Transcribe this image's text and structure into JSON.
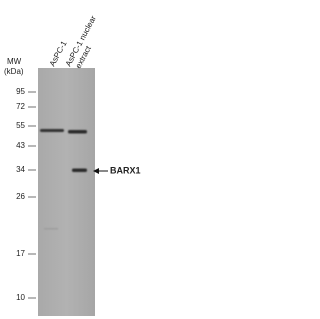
{
  "lanes": [
    "AsPC-1",
    "AsPC-1 nuclear",
    "extract"
  ],
  "mw_label": "MW",
  "mw_unit": "(kDa)",
  "markers": [
    95,
    72,
    55,
    43,
    34,
    26,
    17,
    10
  ],
  "target": "BARX1"
}
